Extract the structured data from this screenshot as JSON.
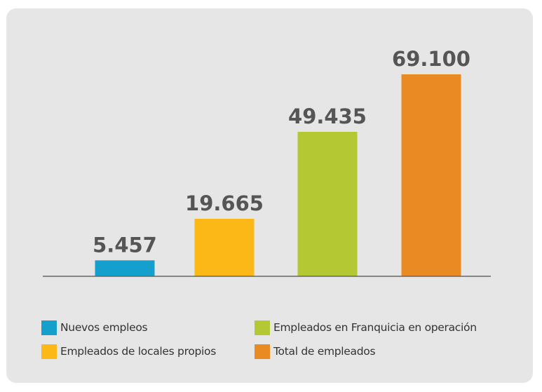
{
  "chart_data": {
    "type": "bar",
    "categories": [
      "Nuevos empleos",
      "Empleados de locales propios",
      "Empleados en Franquicia en operación",
      "Total de empleados"
    ],
    "values": [
      5457,
      19665,
      49435,
      69100
    ],
    "value_labels": [
      "5.457",
      "19.665",
      "49.435",
      "69.100"
    ],
    "colors": [
      "#159fcc",
      "#fbb817",
      "#b3c832",
      "#e98a23"
    ],
    "title": "",
    "xlabel": "",
    "ylabel": "",
    "ylim": [
      0,
      69100
    ],
    "grid": false,
    "legend_position": "bottom"
  },
  "legend": {
    "items": [
      {
        "label": "Nuevos empleos",
        "color": "#159fcc"
      },
      {
        "label": "Empleados en Franquicia en operación",
        "color": "#b3c832"
      },
      {
        "label": "Empleados de locales propios",
        "color": "#fbb817"
      },
      {
        "label": "Total de empleados",
        "color": "#e98a23"
      }
    ]
  },
  "style": {
    "background": "#e6e6e6",
    "value_label_color": "#555555",
    "axis_color": "#666666"
  }
}
